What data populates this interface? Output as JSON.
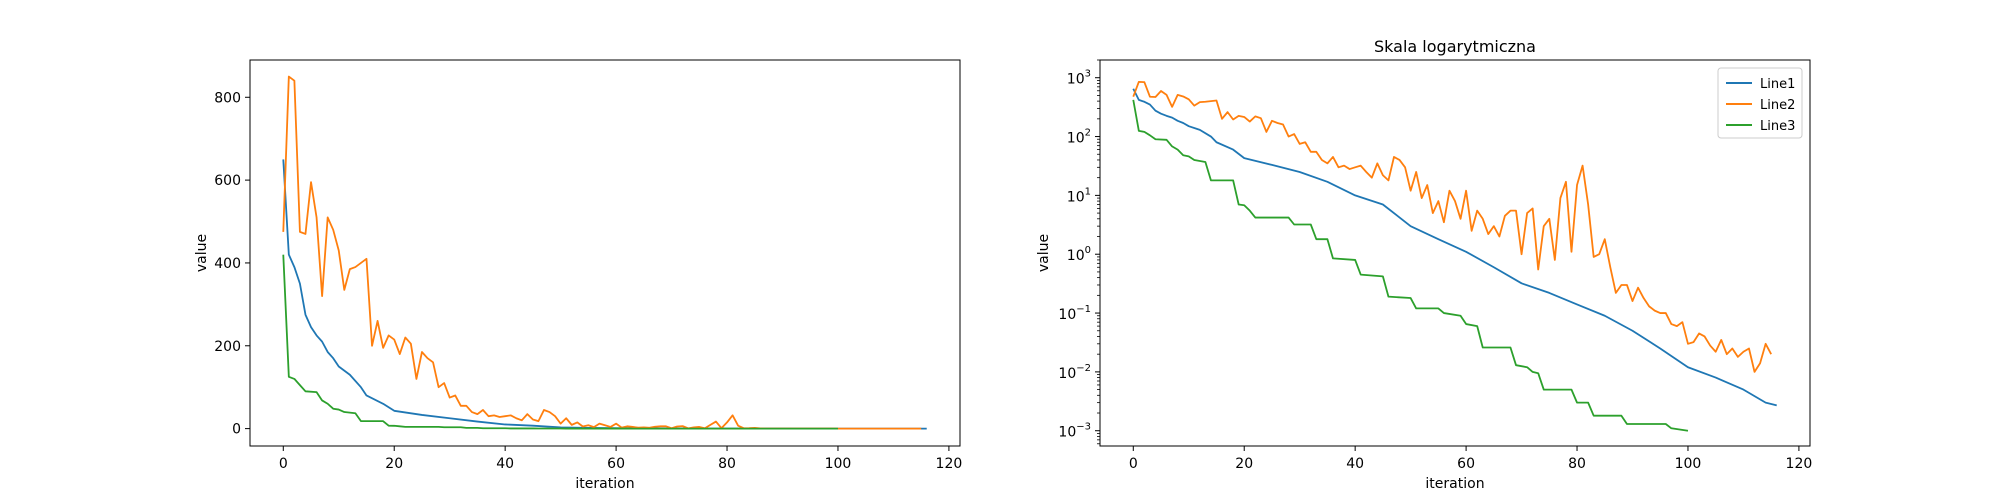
{
  "chart_data": [
    {
      "type": "line",
      "title": "",
      "xlabel": "iteration",
      "ylabel": "value",
      "yscale": "linear",
      "xlim": [
        -6,
        122
      ],
      "ylim": [
        -42,
        890
      ],
      "xticks": [
        0,
        20,
        40,
        60,
        80,
        100,
        120
      ],
      "xtick_labels": [
        "0",
        "20",
        "40",
        "60",
        "80",
        "100",
        "120"
      ],
      "yticks": [
        0,
        200,
        400,
        600,
        800
      ],
      "ytick_labels": [
        "0",
        "200",
        "400",
        "600",
        "800"
      ],
      "grid": false,
      "legend": null,
      "series_ref": "shared"
    },
    {
      "type": "line",
      "title": "Skala logarytmiczna",
      "xlabel": "iteration",
      "ylabel": "value",
      "yscale": "log",
      "xlim": [
        -6,
        122
      ],
      "ylim": [
        0.00055,
        2000
      ],
      "xticks": [
        0,
        20,
        40,
        60,
        80,
        100,
        120
      ],
      "xtick_labels": [
        "0",
        "20",
        "40",
        "60",
        "80",
        "100",
        "120"
      ],
      "yticks": [
        0.001,
        0.01,
        0.1,
        1,
        10,
        100,
        1000
      ],
      "ytick_labels": [
        {
          "base": "10",
          "exp": "−3"
        },
        {
          "base": "10",
          "exp": "−2"
        },
        {
          "base": "10",
          "exp": "−1"
        },
        {
          "base": "10",
          "exp": "0"
        },
        {
          "base": "10",
          "exp": "1"
        },
        {
          "base": "10",
          "exp": "2"
        },
        {
          "base": "10",
          "exp": "3"
        }
      ],
      "grid": false,
      "legend": "top-right",
      "series_ref": "shared"
    }
  ],
  "series": [
    {
      "name": "Line1",
      "color": "#1f77b4"
    },
    {
      "name": "Line2",
      "color": "#ff7f0e"
    },
    {
      "name": "Line3",
      "color": "#2ca02c"
    }
  ],
  "series_points": {
    "Line1": [
      [
        0,
        650
      ],
      [
        1,
        420
      ],
      [
        2,
        390
      ],
      [
        3,
        350
      ],
      [
        4,
        275
      ],
      [
        5,
        245
      ],
      [
        6,
        225
      ],
      [
        7,
        210
      ],
      [
        8,
        185
      ],
      [
        9,
        170
      ],
      [
        10,
        150
      ],
      [
        12,
        130
      ],
      [
        14,
        100
      ],
      [
        15,
        80
      ],
      [
        18,
        60
      ],
      [
        20,
        43
      ],
      [
        25,
        33
      ],
      [
        30,
        25
      ],
      [
        35,
        17
      ],
      [
        40,
        10
      ],
      [
        45,
        7
      ],
      [
        50,
        3
      ],
      [
        55,
        1.8
      ],
      [
        60,
        1.1
      ],
      [
        65,
        0.6
      ],
      [
        70,
        0.32
      ],
      [
        75,
        0.22
      ],
      [
        80,
        0.14
      ],
      [
        85,
        0.09
      ],
      [
        90,
        0.05
      ],
      [
        95,
        0.025
      ],
      [
        100,
        0.012
      ],
      [
        105,
        0.008
      ],
      [
        110,
        0.005
      ],
      [
        114,
        0.003
      ],
      [
        116,
        0.0027
      ]
    ],
    "Line2": [
      [
        0,
        475
      ],
      [
        1,
        850
      ],
      [
        2,
        840
      ],
      [
        3,
        475
      ],
      [
        4,
        470
      ],
      [
        5,
        595
      ],
      [
        6,
        510
      ],
      [
        7,
        320
      ],
      [
        8,
        510
      ],
      [
        9,
        480
      ],
      [
        10,
        430
      ],
      [
        11,
        335
      ],
      [
        12,
        385
      ],
      [
        13,
        390
      ],
      [
        14,
        400
      ],
      [
        15,
        410
      ],
      [
        16,
        200
      ],
      [
        17,
        260
      ],
      [
        18,
        195
      ],
      [
        19,
        225
      ],
      [
        20,
        215
      ],
      [
        21,
        180
      ],
      [
        22,
        220
      ],
      [
        23,
        205
      ],
      [
        24,
        120
      ],
      [
        25,
        185
      ],
      [
        26,
        170
      ],
      [
        27,
        160
      ],
      [
        28,
        100
      ],
      [
        29,
        110
      ],
      [
        30,
        75
      ],
      [
        31,
        80
      ],
      [
        32,
        55
      ],
      [
        33,
        55
      ],
      [
        34,
        40
      ],
      [
        35,
        35
      ],
      [
        36,
        45
      ],
      [
        37,
        30
      ],
      [
        38,
        32
      ],
      [
        39,
        28
      ],
      [
        40,
        30
      ],
      [
        41,
        32
      ],
      [
        42,
        25
      ],
      [
        43,
        20
      ],
      [
        44,
        35
      ],
      [
        45,
        22
      ],
      [
        46,
        18
      ],
      [
        47,
        45
      ],
      [
        48,
        40
      ],
      [
        49,
        30
      ],
      [
        50,
        12
      ],
      [
        51,
        25
      ],
      [
        52,
        9
      ],
      [
        53,
        15
      ],
      [
        54,
        5
      ],
      [
        55,
        8
      ],
      [
        56,
        3.5
      ],
      [
        57,
        12
      ],
      [
        58,
        8
      ],
      [
        59,
        4
      ],
      [
        60,
        12
      ],
      [
        61,
        2.5
      ],
      [
        62,
        5.5
      ],
      [
        63,
        4
      ],
      [
        64,
        2.2
      ],
      [
        65,
        3
      ],
      [
        66,
        2
      ],
      [
        67,
        4.5
      ],
      [
        68,
        5.5
      ],
      [
        69,
        5.5
      ],
      [
        70,
        1
      ],
      [
        71,
        5
      ],
      [
        72,
        6
      ],
      [
        73,
        0.55
      ],
      [
        74,
        3
      ],
      [
        75,
        4
      ],
      [
        76,
        0.8
      ],
      [
        77,
        9
      ],
      [
        78,
        17
      ],
      [
        79,
        1.1
      ],
      [
        80,
        15
      ],
      [
        81,
        32
      ],
      [
        82,
        7
      ],
      [
        83,
        0.9
      ],
      [
        84,
        1
      ],
      [
        85,
        1.8
      ],
      [
        86,
        0.6
      ],
      [
        87,
        0.22
      ],
      [
        88,
        0.3
      ],
      [
        89,
        0.3
      ],
      [
        90,
        0.16
      ],
      [
        91,
        0.27
      ],
      [
        92,
        0.18
      ],
      [
        93,
        0.13
      ],
      [
        94,
        0.11
      ],
      [
        95,
        0.1
      ],
      [
        96,
        0.1
      ],
      [
        97,
        0.065
      ],
      [
        98,
        0.06
      ],
      [
        99,
        0.07
      ],
      [
        100,
        0.03
      ],
      [
        101,
        0.032
      ],
      [
        102,
        0.045
      ],
      [
        103,
        0.04
      ],
      [
        104,
        0.028
      ],
      [
        105,
        0.022
      ],
      [
        106,
        0.035
      ],
      [
        107,
        0.02
      ],
      [
        108,
        0.025
      ],
      [
        109,
        0.018
      ],
      [
        110,
        0.022
      ],
      [
        111,
        0.025
      ],
      [
        112,
        0.01
      ],
      [
        113,
        0.014
      ],
      [
        114,
        0.03
      ],
      [
        115,
        0.02
      ]
    ],
    "Line3": [
      [
        0,
        420
      ],
      [
        1,
        125
      ],
      [
        2,
        120
      ],
      [
        3,
        105
      ],
      [
        4,
        90
      ],
      [
        6,
        88
      ],
      [
        7,
        68
      ],
      [
        8,
        60
      ],
      [
        9,
        48
      ],
      [
        10,
        46
      ],
      [
        11,
        40
      ],
      [
        13,
        37
      ],
      [
        14,
        18
      ],
      [
        16,
        18
      ],
      [
        18,
        18
      ],
      [
        19,
        7
      ],
      [
        20,
        6.8
      ],
      [
        21,
        5.5
      ],
      [
        22,
        4.2
      ],
      [
        28,
        4.2
      ],
      [
        29,
        3.2
      ],
      [
        32,
        3.2
      ],
      [
        33,
        1.8
      ],
      [
        35,
        1.8
      ],
      [
        36,
        0.85
      ],
      [
        40,
        0.8
      ],
      [
        41,
        0.45
      ],
      [
        45,
        0.42
      ],
      [
        46,
        0.19
      ],
      [
        50,
        0.18
      ],
      [
        51,
        0.12
      ],
      [
        55,
        0.12
      ],
      [
        56,
        0.1
      ],
      [
        59,
        0.09
      ],
      [
        60,
        0.065
      ],
      [
        62,
        0.06
      ],
      [
        63,
        0.026
      ],
      [
        68,
        0.026
      ],
      [
        69,
        0.013
      ],
      [
        71,
        0.012
      ],
      [
        72,
        0.01
      ],
      [
        73,
        0.0095
      ],
      [
        74,
        0.005
      ],
      [
        79,
        0.005
      ],
      [
        80,
        0.003
      ],
      [
        82,
        0.003
      ],
      [
        83,
        0.0018
      ],
      [
        88,
        0.0018
      ],
      [
        89,
        0.0013
      ],
      [
        96,
        0.0013
      ],
      [
        97,
        0.0011
      ],
      [
        100,
        0.001
      ]
    ]
  }
}
